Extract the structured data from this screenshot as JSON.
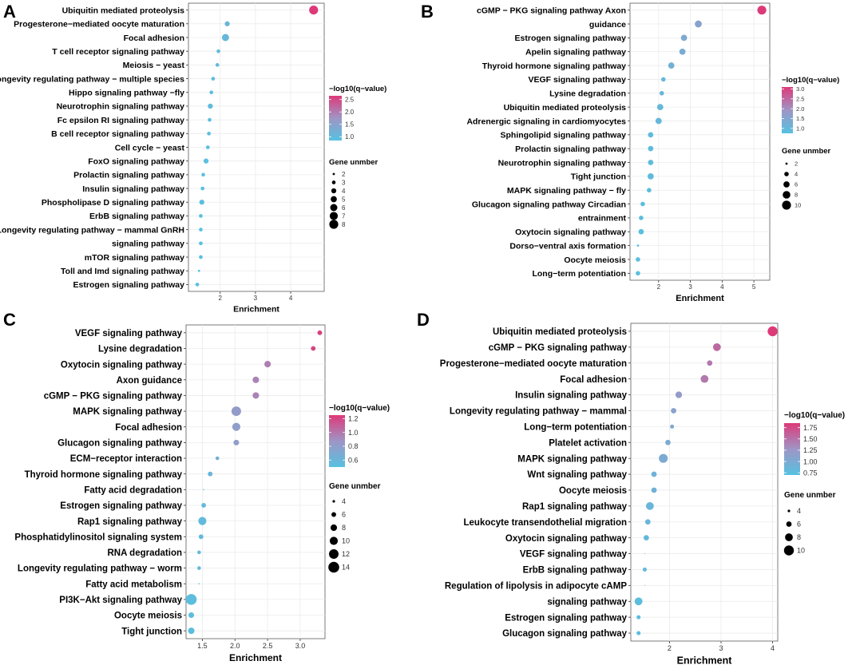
{
  "chart_data": [
    {
      "panel": "A",
      "type": "scatter",
      "xlabel": "Enrichment",
      "ylabel": "",
      "xlim": [
        1.1,
        4.95
      ],
      "xticks": [
        2,
        3,
        4
      ],
      "categories": [
        "Ubiquitin mediated proteolysis",
        "Progesterone−mediated oocyte maturation",
        "Focal adhesion",
        "T cell receptor signaling pathway",
        "Meiosis − yeast",
        "Longevity regulating pathway − multiple species",
        "Hippo signaling pathway −fly",
        "Neurotrophin signaling pathway",
        "Fc epsilon RI signaling pathway",
        "B cell receptor signaling pathway",
        "Cell cycle − yeast",
        "FoxO signaling pathway",
        "Prolactin signaling pathway",
        "Insulin signaling pathway",
        "Phospholipase D signaling pathway",
        "ErbB signaling pathway",
        "Longevity regulating pathway − mammal GnRH",
        "signaling pathway",
        "mTOR signaling pathway",
        "Toll and Imd signaling pathway",
        "Estrogen signaling pathway"
      ],
      "enrichment": [
        4.65,
        2.2,
        2.15,
        1.95,
        1.92,
        1.8,
        1.75,
        1.72,
        1.7,
        1.68,
        1.65,
        1.6,
        1.52,
        1.5,
        1.48,
        1.45,
        1.45,
        1.45,
        1.45,
        1.4,
        1.35
      ],
      "gene_number": [
        8,
        4,
        6,
        3,
        3,
        3,
        3,
        4,
        3,
        3,
        3,
        4,
        3,
        3,
        4,
        3,
        3,
        3,
        3,
        2,
        3
      ],
      "q_value": [
        2.65,
        1.1,
        1.05,
        1.0,
        1.0,
        0.95,
        0.95,
        0.95,
        0.92,
        0.92,
        0.9,
        0.9,
        0.9,
        0.88,
        0.88,
        0.88,
        0.88,
        0.88,
        0.86,
        0.85,
        0.85
      ],
      "color_legend": {
        "title": "−log10(q−value)",
        "min": 0.85,
        "max": 2.65,
        "ticks": [
          "1.0",
          "1.5",
          "2.0",
          "2.5"
        ],
        "tick_values": [
          1.0,
          1.5,
          2.0,
          2.5
        ]
      },
      "size_legend": {
        "title": "Gene unmber",
        "labels": [
          "2",
          "3",
          "4",
          "5",
          "6",
          "7",
          "8"
        ],
        "values": [
          2,
          3,
          4,
          5,
          6,
          7,
          8
        ]
      }
    },
    {
      "panel": "B",
      "type": "scatter",
      "xlabel": "Enrichment",
      "ylabel": "",
      "xlim": [
        1.1,
        5.5
      ],
      "xticks": [
        2,
        3,
        4,
        5
      ],
      "categories": [
        "cGMP − PKG signaling pathway Axon",
        "guidance",
        "Estrogen signaling pathway",
        "Apelin signaling pathway",
        "Thyroid hormone signaling pathway",
        "VEGF signaling pathway",
        "Lysine degradation",
        "Ubiquitin mediated proteolysis",
        "Adrenergic signaling in cardiomyocytes",
        "Sphingolipid signaling pathway",
        "Prolactin signaling pathway",
        "Neurotrophin signaling pathway",
        "Tight junction",
        "MAPK signaling pathway − fly",
        "Glucagon signaling pathway Circadian",
        "entrainment",
        "Oxytocin signaling pathway",
        "Dorso−ventral axis formation",
        "Oocyte meiosis",
        "Long−term potentiation"
      ],
      "enrichment": [
        5.25,
        3.25,
        2.8,
        2.75,
        2.4,
        2.15,
        2.1,
        2.05,
        2.0,
        1.75,
        1.75,
        1.75,
        1.75,
        1.7,
        1.5,
        1.45,
        1.45,
        1.35,
        1.35,
        1.35
      ],
      "gene_number": [
        10,
        7,
        6,
        6,
        6,
        4,
        4,
        6,
        6,
        5,
        5,
        5,
        6,
        4,
        4,
        4,
        5,
        2,
        4,
        4
      ],
      "q_value": [
        3.1,
        1.6,
        1.4,
        1.3,
        1.2,
        1.05,
        1.05,
        1.0,
        1.0,
        0.9,
        0.9,
        0.9,
        0.9,
        0.85,
        0.85,
        0.85,
        0.8,
        0.8,
        0.8,
        0.8
      ],
      "color_legend": {
        "title": "−log10(q−value)",
        "min": 0.75,
        "max": 3.1,
        "ticks": [
          "1.0",
          "1.5",
          "2.0",
          "2.5",
          "3.0"
        ],
        "tick_values": [
          1.0,
          1.5,
          2.0,
          2.5,
          3.0
        ]
      },
      "size_legend": {
        "title": "Gene unmber",
        "labels": [
          "2",
          "4",
          "6",
          "8",
          "10"
        ],
        "values": [
          2,
          4,
          6,
          8,
          10
        ]
      }
    },
    {
      "panel": "C",
      "type": "scatter",
      "xlabel": "Enrichment",
      "ylabel": "",
      "xlim": [
        1.25,
        3.38
      ],
      "xticks": [
        1.5,
        2.0,
        2.5,
        3.0
      ],
      "xticklabels": [
        "1.5",
        "2.0",
        "2.5",
        "3.0"
      ],
      "categories": [
        "VEGF signaling pathway",
        "Lysine degradation",
        "Oxytocin signaling pathway",
        "Axon guidance",
        "cGMP − PKG signaling pathway",
        "MAPK signaling pathway",
        "Focal adhesion",
        "Glucagon signaling pathway",
        "ECM−receptor interaction",
        "Thyroid hormone signaling pathway",
        "Fatty acid degradation",
        "Estrogen signaling pathway",
        "Rap1 signaling pathway",
        "Phosphatidylinositol signaling system",
        "RNA degradation",
        "Longevity regulating pathway − worm",
        "Fatty acid metabolism",
        "PI3K−Akt signaling pathway",
        "Oocyte meiosis",
        "Tight junction"
      ],
      "enrichment": [
        3.3,
        3.2,
        2.5,
        2.32,
        2.32,
        2.02,
        2.02,
        2.02,
        1.73,
        1.62,
        1.52,
        1.52,
        1.5,
        1.48,
        1.45,
        1.45,
        1.45,
        1.33,
        1.33,
        1.33
      ],
      "gene_number": [
        6,
        6,
        8,
        8,
        8,
        12,
        10,
        7,
        5,
        6,
        3,
        6,
        10,
        6,
        5,
        5,
        3,
        14,
        7,
        8
      ],
      "q_value": [
        1.22,
        1.2,
        0.97,
        0.95,
        0.95,
        0.82,
        0.8,
        0.8,
        0.65,
        0.6,
        0.56,
        0.56,
        0.56,
        0.56,
        0.55,
        0.55,
        0.55,
        0.53,
        0.53,
        0.53
      ],
      "color_legend": {
        "title": "−log10(q−value)",
        "min": 0.5,
        "max": 1.25,
        "ticks": [
          "0.6",
          "0.8",
          "1.0",
          "1.2"
        ],
        "tick_values": [
          0.6,
          0.8,
          1.0,
          1.2
        ]
      },
      "size_legend": {
        "title": "Gene unmber",
        "labels": [
          "4",
          "6",
          "8",
          "10",
          "12",
          "14"
        ],
        "values": [
          4,
          6,
          8,
          10,
          12,
          14
        ]
      }
    },
    {
      "panel": "D",
      "type": "scatter",
      "xlabel": "Enrichment",
      "ylabel": "",
      "xlim": [
        1.25,
        4.1
      ],
      "xticks": [
        2,
        3,
        4
      ],
      "categories": [
        "Ubiquitin mediated proteolysis",
        "cGMP − PKG signaling pathway",
        "Progesterone−mediated oocyte maturation",
        "Focal adhesion",
        "Insulin signaling pathway",
        "Longevity regulating pathway − mammal",
        "Long−term potentiation",
        "Platelet activation",
        "MAPK signaling pathway",
        "Wnt signaling pathway",
        "Oocyte meiosis",
        "Rap1 signaling pathway",
        "Leukocyte transendothelial migration",
        "Oxytocin signaling pathway",
        "VEGF signaling pathway",
        "ErbB signaling pathway",
        "Regulation of lipolysis in adipocyte cAMP",
        "signaling pathway",
        "Estrogen signaling pathway",
        "Glucagon signaling pathway"
      ],
      "enrichment": [
        4.0,
        2.92,
        2.78,
        2.68,
        2.18,
        2.08,
        2.05,
        1.97,
        1.88,
        1.7,
        1.7,
        1.62,
        1.58,
        1.55,
        1.52,
        1.52,
        1.52,
        1.4,
        1.4,
        1.4
      ],
      "gene_number": [
        10,
        8,
        6,
        8,
        7,
        6,
        5,
        6,
        9,
        6,
        6,
        8,
        6,
        6,
        3,
        5,
        3,
        8,
        5,
        5
      ],
      "q_value": [
        1.85,
        1.55,
        1.45,
        1.45,
        1.2,
        1.1,
        1.05,
        1.0,
        1.0,
        0.9,
        0.9,
        0.85,
        0.85,
        0.8,
        0.8,
        0.8,
        0.8,
        0.75,
        0.75,
        0.75
      ],
      "color_legend": {
        "title": "−log10(q−value)",
        "min": 0.7,
        "max": 1.85,
        "ticks": [
          "0.75",
          "1.00",
          "1.25",
          "1.50",
          "1.75"
        ],
        "tick_values": [
          0.75,
          1.0,
          1.25,
          1.5,
          1.75
        ]
      },
      "size_legend": {
        "title": "Gene unmber",
        "labels": [
          "4",
          "6",
          "8",
          "10"
        ],
        "values": [
          4,
          6,
          8,
          10
        ]
      }
    }
  ]
}
